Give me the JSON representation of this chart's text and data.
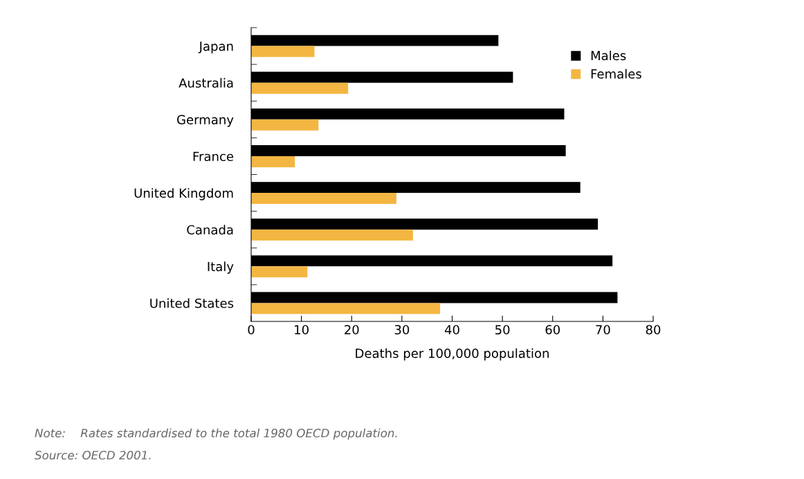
{
  "chart_data": {
    "type": "bar",
    "orientation": "horizontal",
    "xlabel": "Deaths per 100,000 population",
    "categories": [
      "Japan",
      "Australia",
      "Germany",
      "France",
      "United Kingdom",
      "Canada",
      "Italy",
      "United States"
    ],
    "series": [
      {
        "name": "Males",
        "color": "#000000",
        "values": [
          49.2,
          52.1,
          62.3,
          62.6,
          65.5,
          69.0,
          71.9,
          72.9
        ]
      },
      {
        "name": "Females",
        "color": "#f4b642",
        "values": [
          12.6,
          19.3,
          13.4,
          8.7,
          28.9,
          32.2,
          11.2,
          37.6
        ]
      }
    ],
    "xlim": [
      0,
      80
    ],
    "xticks": [
      0,
      10,
      20,
      30,
      40,
      50,
      60,
      70,
      80
    ],
    "grid": false,
    "legend": "top right",
    "annotations": [
      "Note:    Rates standardised to the total 1980 OECD population.",
      "Source: OECD 2001."
    ]
  }
}
